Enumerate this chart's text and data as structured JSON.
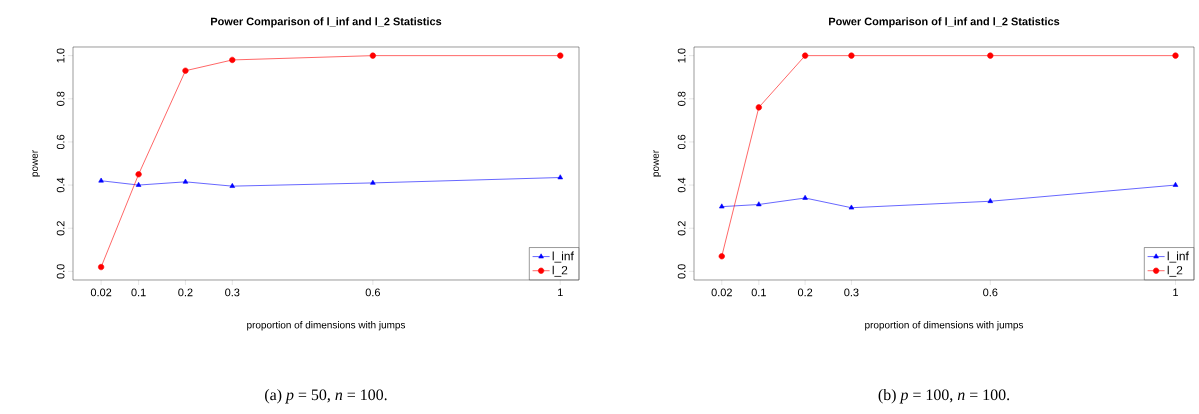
{
  "chart_data": [
    {
      "type": "line",
      "title": "Power Comparison of l_inf and l_2 Statistics",
      "xlabel": "proportion of dimensions with jumps",
      "ylabel": "power",
      "x": [
        0.02,
        0.1,
        0.2,
        0.3,
        0.6,
        1
      ],
      "series": [
        {
          "name": "l_inf",
          "color": "#0000ff",
          "marker": "triangle",
          "values": [
            0.42,
            0.4,
            0.415,
            0.395,
            0.41,
            0.435
          ]
        },
        {
          "name": "l_2",
          "color": "#ff0000",
          "marker": "circle",
          "values": [
            0.02,
            0.45,
            0.93,
            0.98,
            1.0,
            1.0
          ]
        }
      ],
      "xlim": [
        -0.04,
        1.04
      ],
      "ylim": [
        -0.04,
        1.04
      ],
      "xticks": [
        0.02,
        0.1,
        0.2,
        0.3,
        0.6,
        1
      ],
      "yticks": [
        {
          "value": 0,
          "label": "0.0"
        },
        {
          "value": 0.2,
          "label": "0.2"
        },
        {
          "value": 0.4,
          "label": "0.4"
        },
        {
          "value": 0.6,
          "label": "0.6"
        },
        {
          "value": 0.8,
          "label": "0.8"
        },
        {
          "value": 1,
          "label": "1.0"
        }
      ],
      "legend": "bottom right",
      "line_style": "solid",
      "annotations": [
        "(a) *p* = 50, *n* = 100."
      ]
    },
    {
      "type": "line",
      "title": "Power Comparison of l_inf and l_2 Statistics",
      "xlabel": "proportion of dimensions with jumps",
      "ylabel": "power",
      "x": [
        0.02,
        0.1,
        0.2,
        0.3,
        0.6,
        1
      ],
      "series": [
        {
          "name": "l_inf",
          "color": "#0000ff",
          "marker": "triangle",
          "values": [
            0.3,
            0.31,
            0.34,
            0.295,
            0.325,
            0.4
          ]
        },
        {
          "name": "l_2",
          "color": "#ff0000",
          "marker": "circle",
          "values": [
            0.07,
            0.76,
            1.0,
            1.0,
            1.0,
            1.0
          ]
        }
      ],
      "xlim": [
        -0.04,
        1.04
      ],
      "ylim": [
        -0.04,
        1.04
      ],
      "xticks": [
        0.02,
        0.1,
        0.2,
        0.3,
        0.6,
        1
      ],
      "yticks": [
        {
          "value": 0,
          "label": "0.0"
        },
        {
          "value": 0.2,
          "label": "0.2"
        },
        {
          "value": 0.4,
          "label": "0.4"
        },
        {
          "value": 0.6,
          "label": "0.6"
        },
        {
          "value": 0.8,
          "label": "0.8"
        },
        {
          "value": 1,
          "label": "1.0"
        }
      ],
      "legend": "bottom right",
      "line_style": "solid",
      "annotations": [
        "(b) *p* = 100, *n* = 100."
      ]
    }
  ]
}
